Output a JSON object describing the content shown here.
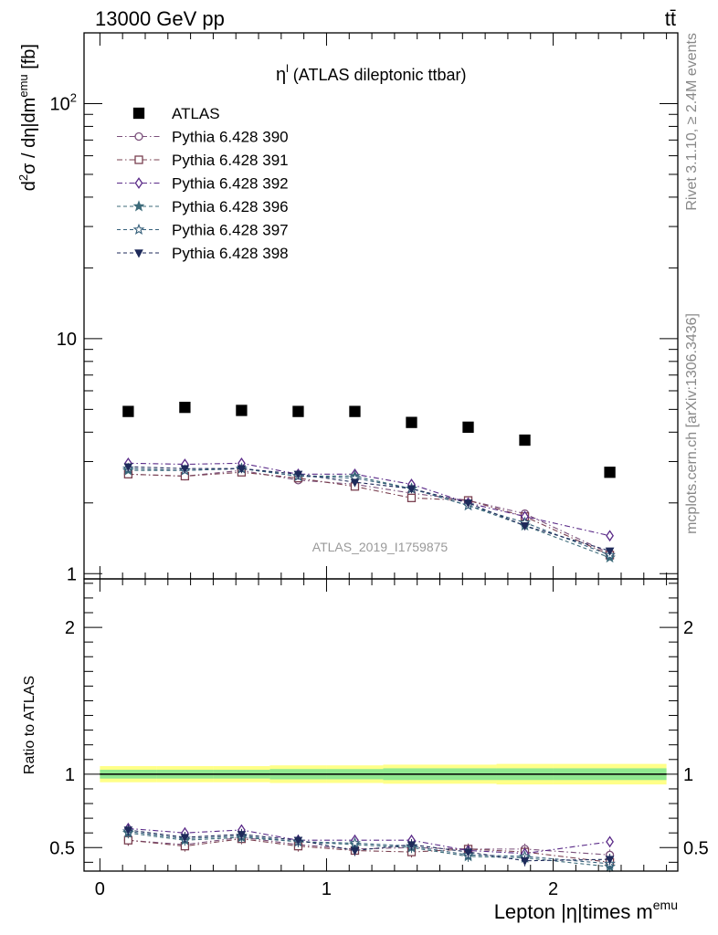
{
  "header": {
    "left": "13000 GeV pp",
    "right": "tt̄"
  },
  "side": {
    "rivet": "Rivet 3.1.10, ≥ 2.4M events",
    "mcplots": "mcplots.cern.ch [arXiv:1306.3436]"
  },
  "chart_data": [
    {
      "type": "scatter",
      "title": "η",
      "title_superscript": "l",
      "title_suffix": " (ATLAS dileptonic ttbar)",
      "watermark": "ATLAS_2019_I1759875",
      "ylabel_parts": [
        "d",
        "2",
        "σ / dη|dm",
        "emu",
        " [fb]"
      ],
      "yscale": "log",
      "xlim": [
        -0.07,
        2.55
      ],
      "ylim": [
        0.95,
        200
      ],
      "y_ticklabels": [
        {
          "value": 1,
          "text": "1"
        },
        {
          "value": 10,
          "text": "10"
        },
        {
          "value": 100,
          "base": "10",
          "exp": "2"
        }
      ],
      "legend_position": "top-left",
      "x": [
        0.125,
        0.375,
        0.625,
        0.875,
        1.125,
        1.375,
        1.625,
        1.875,
        2.25
      ],
      "series": [
        {
          "name": "ATLAS",
          "color": "#000000",
          "marker": "square-filled",
          "dash": "none",
          "values": [
            4.9,
            5.1,
            4.95,
            4.9,
            4.9,
            4.4,
            4.2,
            3.7,
            2.7
          ]
        },
        {
          "name": "Pythia 6.428 390",
          "color": "#7a4f7a",
          "marker": "circle-open",
          "dash": "6,3,1.5,3",
          "values": [
            2.65,
            2.6,
            2.75,
            2.5,
            2.4,
            2.2,
            2.05,
            1.8,
            1.22
          ]
        },
        {
          "name": "Pythia 6.428 391",
          "color": "#7a4050",
          "marker": "square-open",
          "dash": "6,3,1.5,3",
          "values": [
            2.65,
            2.6,
            2.7,
            2.55,
            2.35,
            2.1,
            2.05,
            1.75,
            1.2
          ]
        },
        {
          "name": "Pythia 6.428 392",
          "color": "#5a2a88",
          "marker": "diamond-open",
          "dash": "6,3,1.5,3",
          "values": [
            2.95,
            2.92,
            2.95,
            2.65,
            2.65,
            2.4,
            2.0,
            1.75,
            1.45
          ]
        },
        {
          "name": "Pythia 6.428 396",
          "color": "#3d6b7a",
          "marker": "star-filled",
          "dash": "4,3",
          "values": [
            2.75,
            2.75,
            2.8,
            2.6,
            2.6,
            2.3,
            1.95,
            1.6,
            1.17
          ]
        },
        {
          "name": "Pythia 6.428 397",
          "color": "#355f7a",
          "marker": "star-open",
          "dash": "4,3",
          "values": [
            2.8,
            2.75,
            2.8,
            2.6,
            2.55,
            2.3,
            1.95,
            1.65,
            1.2
          ]
        },
        {
          "name": "Pythia 6.428 398",
          "color": "#1e2a5a",
          "marker": "triangle-down-filled",
          "dash": "4,3",
          "values": [
            2.85,
            2.8,
            2.8,
            2.65,
            2.45,
            2.3,
            2.0,
            1.6,
            1.25
          ]
        }
      ]
    },
    {
      "type": "scatter",
      "ylabel": "Ratio to ATLAS",
      "xlabel_parts": [
        "Lepton |η|times m",
        "emu"
      ],
      "yscale": "linear",
      "xlim": [
        -0.07,
        2.55
      ],
      "ylim": [
        0.34,
        2.33
      ],
      "x_ticks": [
        0,
        1,
        2
      ],
      "y_ticks": [
        0.5,
        1,
        2
      ],
      "x": [
        0.125,
        0.375,
        0.625,
        0.875,
        1.125,
        1.375,
        1.625,
        1.875,
        2.25
      ],
      "band_outer": {
        "color": "#ffff88",
        "halfwidth": [
          0.055,
          0.055,
          0.055,
          0.06,
          0.06,
          0.065,
          0.065,
          0.07,
          0.07
        ]
      },
      "band_inner": {
        "color": "#90e890",
        "halfwidth": [
          0.03,
          0.03,
          0.03,
          0.035,
          0.035,
          0.04,
          0.04,
          0.04,
          0.04
        ]
      },
      "series": [
        {
          "name": "Pythia 6.428 390",
          "values": [
            0.55,
            0.52,
            0.57,
            0.52,
            0.49,
            0.5,
            0.49,
            0.49,
            0.45
          ]
        },
        {
          "name": "Pythia 6.428 391",
          "values": [
            0.55,
            0.51,
            0.56,
            0.51,
            0.48,
            0.47,
            0.49,
            0.47,
            0.4
          ]
        },
        {
          "name": "Pythia 6.428 392",
          "values": [
            0.63,
            0.6,
            0.62,
            0.55,
            0.55,
            0.55,
            0.48,
            0.46,
            0.54
          ]
        },
        {
          "name": "Pythia 6.428 396",
          "values": [
            0.6,
            0.55,
            0.57,
            0.54,
            0.52,
            0.5,
            0.44,
            0.43,
            0.37
          ]
        },
        {
          "name": "Pythia 6.428 397",
          "values": [
            0.61,
            0.56,
            0.58,
            0.54,
            0.53,
            0.51,
            0.45,
            0.44,
            0.39
          ]
        },
        {
          "name": "Pythia 6.428 398",
          "values": [
            0.62,
            0.57,
            0.59,
            0.55,
            0.48,
            0.52,
            0.47,
            0.41,
            0.42
          ]
        }
      ]
    }
  ]
}
